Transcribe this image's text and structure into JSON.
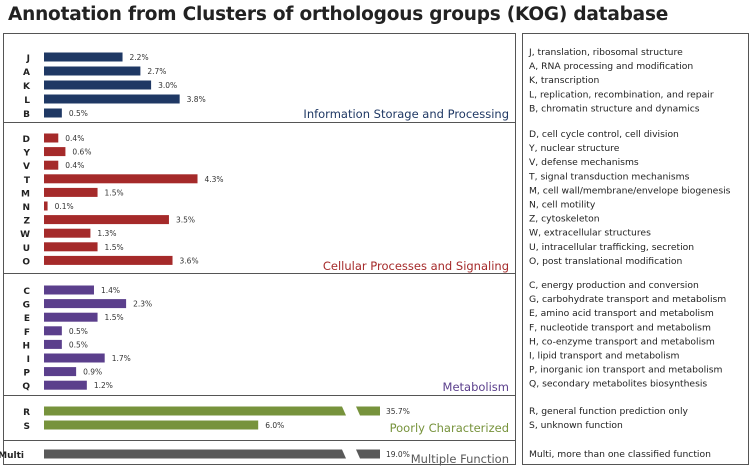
{
  "title": "Annotation from Clusters of orthologous groups (KOG) database",
  "chart_data": {
    "type": "bar",
    "orientation": "horizontal",
    "value_unit": "%",
    "axis_break": true,
    "groups": [
      {
        "name": "Information Storage and Processing",
        "color": "#1f3864",
        "items": [
          {
            "code": "J",
            "value": 2.2,
            "label": "2.2%",
            "description": "J, translation, ribosomal structure"
          },
          {
            "code": "A",
            "value": 2.7,
            "label": "2.7%",
            "description": "A, RNA processing and modification"
          },
          {
            "code": "K",
            "value": 3.0,
            "label": "3.0%",
            "description": "K, transcription"
          },
          {
            "code": "L",
            "value": 3.8,
            "label": "3.8%",
            "description": "L, replication, recombination, and repair"
          },
          {
            "code": "B",
            "value": 0.5,
            "label": "0.5%",
            "description": "B, chromatin structure and dynamics"
          }
        ]
      },
      {
        "name": "Cellular Processes and Signaling",
        "color": "#a52a2a",
        "items": [
          {
            "code": "D",
            "value": 0.4,
            "label": "0.4%",
            "description": "D, cell cycle control, cell division"
          },
          {
            "code": "Y",
            "value": 0.6,
            "label": "0.6%",
            "description": "Y, nuclear structure"
          },
          {
            "code": "V",
            "value": 0.4,
            "label": "0.4%",
            "description": "V, defense mechanisms"
          },
          {
            "code": "T",
            "value": 4.3,
            "label": "4.3%",
            "description": "T, signal transduction mechanisms"
          },
          {
            "code": "M",
            "value": 1.5,
            "label": "1.5%",
            "description": "M, cell wall/membrane/envelope biogenesis"
          },
          {
            "code": "N",
            "value": 0.1,
            "label": "0.1%",
            "description": "N, cell motility"
          },
          {
            "code": "Z",
            "value": 3.5,
            "label": "3.5%",
            "description": "Z, cytoskeleton"
          },
          {
            "code": "W",
            "value": 1.3,
            "label": "1.3%",
            "description": "W, extracellular structures"
          },
          {
            "code": "U",
            "value": 1.5,
            "label": "1.5%",
            "description": "U, intracellular trafficking, secretion"
          },
          {
            "code": "O",
            "value": 3.6,
            "label": "3.6%",
            "description": "O, post translational modification"
          }
        ]
      },
      {
        "name": "Metabolism",
        "color": "#5b3f8c",
        "items": [
          {
            "code": "C",
            "value": 1.4,
            "label": "1.4%",
            "description": "C, energy production and conversion"
          },
          {
            "code": "G",
            "value": 2.3,
            "label": "2.3%",
            "description": "G, carbohydrate transport and metabolism"
          },
          {
            "code": "E",
            "value": 1.5,
            "label": "1.5%",
            "description": "E, amino acid transport and metabolism"
          },
          {
            "code": "F",
            "value": 0.5,
            "label": "0.5%",
            "description": "F, nucleotide transport and metabolism"
          },
          {
            "code": "H",
            "value": 0.5,
            "label": "0.5%",
            "description": "H, co-enzyme transport and metabolism"
          },
          {
            "code": "I",
            "value": 1.7,
            "label": "1.7%",
            "description": "I, lipid transport and metabolism"
          },
          {
            "code": "P",
            "value": 0.9,
            "label": "0.9%",
            "description": "P, inorganic ion transport and metabolism"
          },
          {
            "code": "Q",
            "value": 1.2,
            "label": "1.2%",
            "description": "Q, secondary metabolites biosynthesis"
          }
        ]
      },
      {
        "name": "Poorly Characterized",
        "color": "#77933c",
        "items": [
          {
            "code": "R",
            "value": 35.7,
            "label": "35.7%",
            "description": "R, general function prediction only",
            "broken": true
          },
          {
            "code": "S",
            "value": 6.0,
            "label": "6.0%",
            "description": "S, unknown function",
            "broken": false
          }
        ]
      },
      {
        "name": "Multiple Function",
        "color": "#595959",
        "items": [
          {
            "code": "Multi",
            "value": 19.0,
            "label": "19.0%",
            "description": "Multi, more than one classified function",
            "broken": true
          }
        ]
      }
    ]
  }
}
